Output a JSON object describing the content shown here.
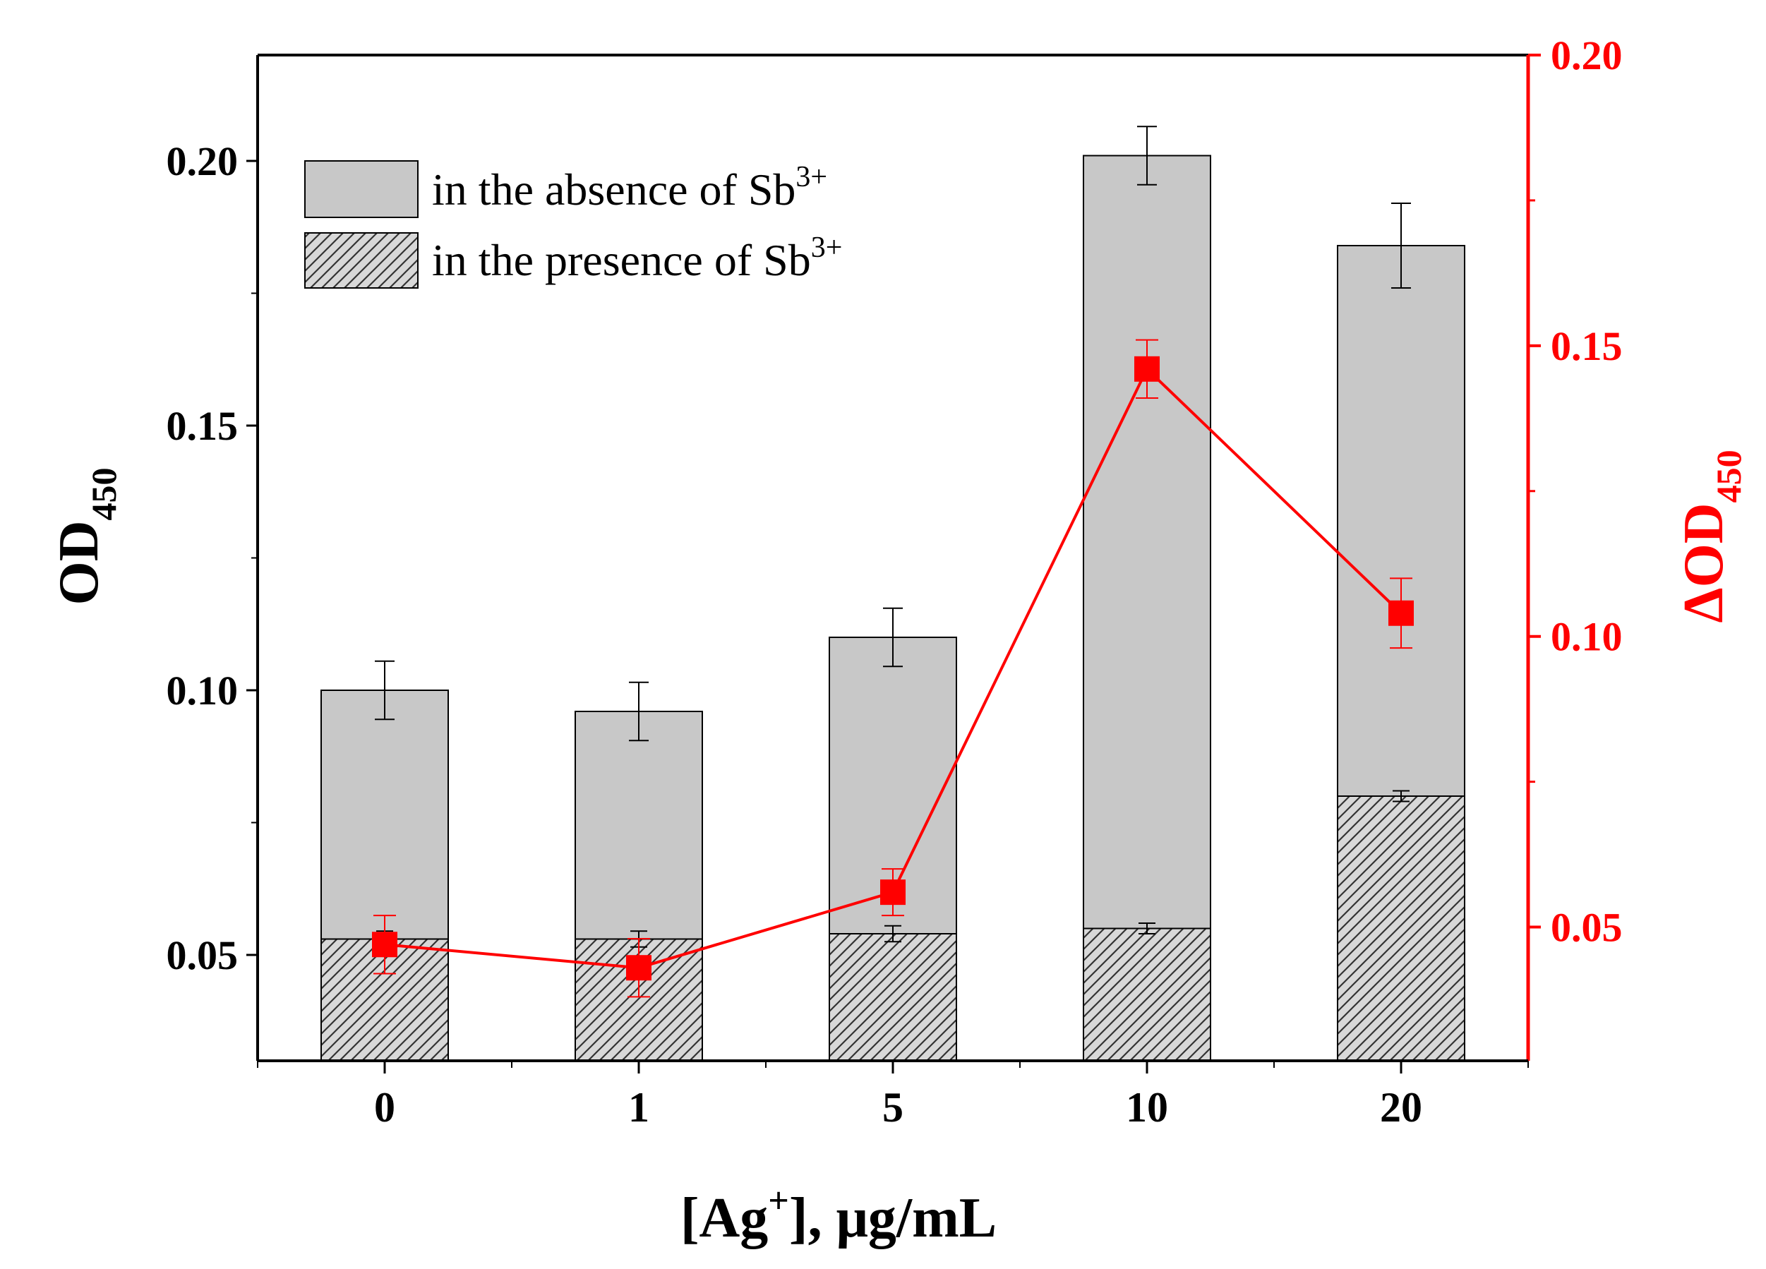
{
  "chart_data": {
    "type": "bar",
    "categories": [
      "0",
      "1",
      "5",
      "10",
      "20"
    ],
    "xlabel": {
      "pre": "[Ag",
      "sup": "+",
      "post": "], μg/mL"
    },
    "left_axis": {
      "ylabel": {
        "main": "OD",
        "sub": "450"
      },
      "ylim": [
        0.03,
        0.22
      ],
      "ticks": [
        0.05,
        0.1,
        0.15,
        0.2
      ],
      "tick_labels": [
        "0.05",
        "0.10",
        "0.15",
        "0.20"
      ]
    },
    "right_axis": {
      "ylabel": {
        "main": "ΔOD",
        "sub": "450"
      },
      "ylim": [
        0.027,
        0.2
      ],
      "ticks": [
        0.05,
        0.1,
        0.15,
        0.2
      ],
      "tick_labels": [
        "0.05",
        "0.10",
        "0.15",
        "0.20"
      ],
      "color": "#ff0000"
    },
    "series": [
      {
        "name": "in the absence of Sb3+",
        "type": "bar",
        "axis": "left",
        "fill": "#c8c8c8",
        "values": [
          0.1,
          0.096,
          0.11,
          0.201,
          0.184
        ],
        "errors": [
          0.0055,
          0.0055,
          0.0055,
          0.0055,
          0.008
        ]
      },
      {
        "name": "in the presence of Sb3+",
        "type": "bar",
        "axis": "left",
        "fill": "hatched",
        "values": [
          0.053,
          0.053,
          0.054,
          0.055,
          0.08
        ],
        "errors": [
          0.0015,
          0.0015,
          0.0015,
          0.001,
          0.001
        ]
      },
      {
        "name": "ΔOD450",
        "type": "line",
        "axis": "right",
        "color": "#ff0000",
        "values": [
          0.047,
          0.043,
          0.056,
          0.146,
          0.104
        ],
        "errors": [
          0.005,
          0.005,
          0.004,
          0.005,
          0.006
        ]
      }
    ],
    "legend": {
      "position": "top-left",
      "entries": [
        {
          "text": "in the absence of Sb",
          "sup": "3+",
          "swatch": "solid"
        },
        {
          "text": "in the presence of Sb",
          "sup": "3+",
          "swatch": "hatched"
        }
      ]
    }
  }
}
